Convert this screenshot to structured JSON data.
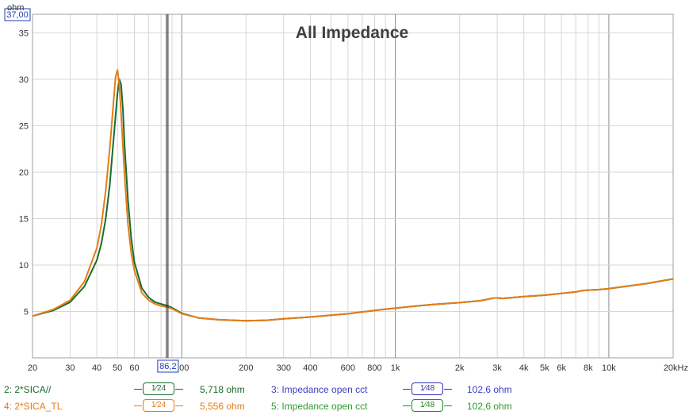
{
  "chart_data": {
    "type": "line",
    "title": "All Impedance",
    "ylabel": "ohm",
    "x_scale": "log",
    "xlim": [
      20,
      20000
    ],
    "ylim": [
      0,
      37
    ],
    "x_ticks": [
      {
        "v": 20,
        "label": "20"
      },
      {
        "v": 30,
        "label": "30"
      },
      {
        "v": 40,
        "label": "40"
      },
      {
        "v": 50,
        "label": "50"
      },
      {
        "v": 60,
        "label": "60"
      },
      {
        "v": 100,
        "label": "100"
      },
      {
        "v": 200,
        "label": "200"
      },
      {
        "v": 300,
        "label": "300"
      },
      {
        "v": 400,
        "label": "400"
      },
      {
        "v": 600,
        "label": "600"
      },
      {
        "v": 800,
        "label": "800"
      },
      {
        "v": 1000,
        "label": "1k"
      },
      {
        "v": 2000,
        "label": "2k"
      },
      {
        "v": 3000,
        "label": "3k"
      },
      {
        "v": 4000,
        "label": "4k"
      },
      {
        "v": 5000,
        "label": "5k"
      },
      {
        "v": 6000,
        "label": "6k"
      },
      {
        "v": 8000,
        "label": "8k"
      },
      {
        "v": 10000,
        "label": "10k"
      },
      {
        "v": 20000,
        "label": "20kHz"
      }
    ],
    "y_ticks": [
      5,
      10,
      15,
      20,
      25,
      30,
      35
    ],
    "cursor": {
      "x": 86.2,
      "x_label": "86,2",
      "y_label": "37,00"
    },
    "series": [
      {
        "name": "2*SICA//",
        "color": "#1b6b2e",
        "x": [
          20,
          25,
          30,
          35,
          40,
          42,
          44,
          46,
          48,
          50,
          51,
          52,
          53,
          54,
          56,
          58,
          60,
          65,
          70,
          75,
          80,
          86,
          90,
          100,
          120,
          150,
          200,
          250,
          300,
          400,
          500,
          600,
          700,
          800,
          900,
          1000,
          1200,
          1500,
          2000,
          2500,
          2900,
          3000,
          3200,
          4000,
          5000,
          6000,
          7000,
          7500,
          8000,
          9000,
          10000,
          12000,
          15000,
          20000
        ],
        "y": [
          4.5,
          5.1,
          6.0,
          7.7,
          10.5,
          12.3,
          14.9,
          18.6,
          23.7,
          28.5,
          30.0,
          29.4,
          26.8,
          22.8,
          17.0,
          12.9,
          10.3,
          7.5,
          6.5,
          6.0,
          5.8,
          5.6,
          5.4,
          4.8,
          4.3,
          4.1,
          4.0,
          4.05,
          4.2,
          4.4,
          4.6,
          4.75,
          4.95,
          5.1,
          5.25,
          5.35,
          5.55,
          5.75,
          5.95,
          6.15,
          6.45,
          6.45,
          6.4,
          6.6,
          6.75,
          6.95,
          7.1,
          7.25,
          7.3,
          7.35,
          7.45,
          7.7,
          8.0,
          8.5
        ]
      },
      {
        "name": "2*SICA_TL",
        "color": "#e47d18",
        "x": [
          20,
          25,
          30,
          35,
          40,
          42,
          44,
          46,
          48,
          49,
          50,
          51,
          52,
          54,
          56,
          58,
          60,
          65,
          70,
          75,
          80,
          86,
          90,
          100,
          120,
          150,
          200,
          250,
          300,
          400,
          500,
          600,
          700,
          800,
          900,
          1000,
          1200,
          1500,
          2000,
          2500,
          2900,
          3000,
          3200,
          4000,
          5000,
          6000,
          7000,
          7500,
          8000,
          9000,
          10000,
          12000,
          15000,
          20000
        ],
        "y": [
          4.5,
          5.2,
          6.2,
          8.2,
          11.8,
          14.3,
          17.9,
          22.5,
          27.8,
          30.3,
          31.0,
          29.4,
          26.2,
          19.5,
          14.4,
          11.3,
          9.4,
          7.0,
          6.2,
          5.8,
          5.6,
          5.45,
          5.3,
          4.75,
          4.3,
          4.1,
          4.0,
          4.05,
          4.2,
          4.4,
          4.6,
          4.75,
          4.95,
          5.1,
          5.25,
          5.35,
          5.55,
          5.75,
          5.95,
          6.15,
          6.45,
          6.45,
          6.4,
          6.6,
          6.75,
          6.95,
          7.1,
          7.25,
          7.3,
          7.35,
          7.45,
          7.7,
          8.0,
          8.5
        ]
      }
    ]
  },
  "legend": {
    "rows": [
      {
        "name": "2: 2*SICA//",
        "name_color": "#1b6b2e",
        "smooth": "1⁄24",
        "smooth_color": "#1b6b2e",
        "value": "5,718 ohm",
        "value_color": "#1b6b2e",
        "ref_name": "3: Impedance open cct",
        "ref_name_color": "#3c3ccc",
        "ref_smooth": "1⁄48",
        "ref_smooth_color": "#3030b8",
        "ref_value": "102,6 ohm",
        "ref_value_color": "#3c3ccc"
      },
      {
        "name": "4: 2*SICA_TL",
        "name_color": "#e47d18",
        "smooth": "1⁄24",
        "smooth_color": "#e47d18",
        "value": "5,556 ohm",
        "value_color": "#e47d18",
        "ref_name": "5: Impedance open cct",
        "ref_name_color": "#2c9c2c",
        "ref_smooth": "1⁄48",
        "ref_smooth_color": "#1f8f1f",
        "ref_value": "102,6 ohm",
        "ref_value_color": "#2c9c2c"
      }
    ]
  }
}
